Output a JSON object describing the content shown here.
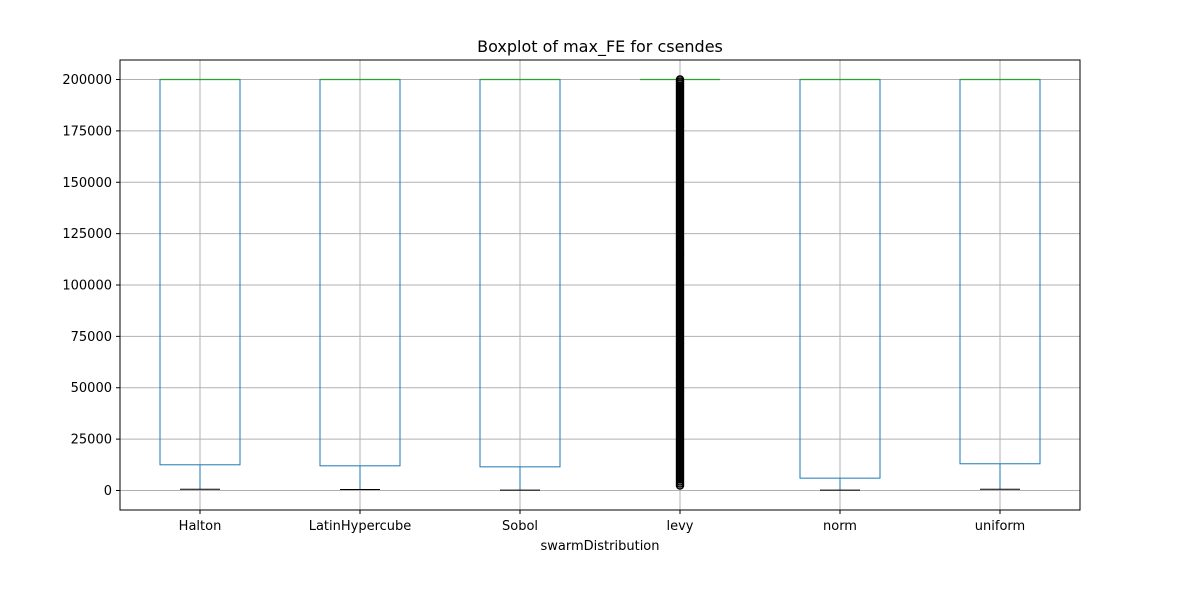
{
  "chart_data": {
    "type": "boxplot",
    "title": "Boxplot of max_FE for csendes",
    "xlabel": "swarmDistribution",
    "ylabel": "",
    "ylim": [
      -9500,
      209500
    ],
    "yticks": [
      0,
      25000,
      50000,
      75000,
      100000,
      125000,
      150000,
      175000,
      200000
    ],
    "yticklabels": [
      "0",
      "25000",
      "50000",
      "75000",
      "100000",
      "125000",
      "150000",
      "175000",
      "200000"
    ],
    "grid": true,
    "categories": [
      "Halton",
      "LatinHypercube",
      "Sobol",
      "levy",
      "norm",
      "uniform"
    ],
    "boxes": [
      {
        "category": "Halton",
        "whislo": 600,
        "q1": 12500,
        "med": 200000,
        "q3": 200000,
        "whishi": 200000,
        "fliers_range": null
      },
      {
        "category": "LatinHypercube",
        "whislo": 500,
        "q1": 12000,
        "med": 200000,
        "q3": 200000,
        "whishi": 200000,
        "fliers_range": null
      },
      {
        "category": "Sobol",
        "whislo": 200,
        "q1": 11500,
        "med": 200000,
        "q3": 200000,
        "whishi": 200000,
        "fliers_range": null
      },
      {
        "category": "levy",
        "whislo": 200000,
        "q1": 200000,
        "med": 200000,
        "q3": 200000,
        "whishi": 200000,
        "fliers_range": [
          2000,
          200000
        ]
      },
      {
        "category": "norm",
        "whislo": 200,
        "q1": 6000,
        "med": 200000,
        "q3": 200000,
        "whishi": 200000,
        "fliers_range": null
      },
      {
        "category": "uniform",
        "whislo": 600,
        "q1": 13000,
        "med": 200000,
        "q3": 200000,
        "whishi": 200000,
        "fliers_range": null
      }
    ],
    "colors": {
      "box": "#1f77b4",
      "median": "#2ca02c",
      "whisker": "#000000",
      "grid": "#b0b0b0",
      "flier": "#000000"
    }
  }
}
